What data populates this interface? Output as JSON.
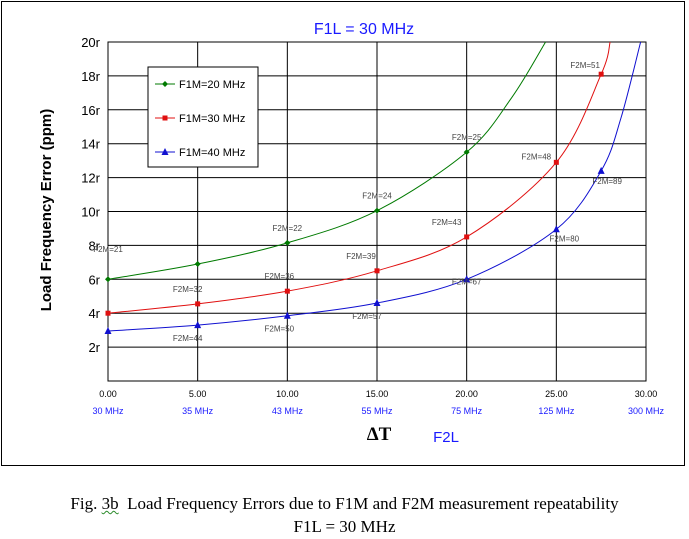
{
  "chart_data": {
    "type": "line",
    "title": "F1L = 30 MHz",
    "xlabel": "ΔT",
    "xlabel2": "F2L",
    "ylabel": "Load Frequency Error (ppm)",
    "xlim": [
      0,
      30
    ],
    "ylim": [
      0,
      20
    ],
    "grid": true,
    "legend_position": "top-left",
    "x_ticks": [
      "0.00",
      "5.00",
      "10.00",
      "15.00",
      "20.00",
      "25.00",
      "30.00"
    ],
    "x_tick_values": [
      0,
      5,
      10,
      15,
      20,
      25,
      30
    ],
    "x_ticks_secondary": [
      "30 MHz",
      "35 MHz",
      "43 MHz",
      "55 MHz",
      "75 MHz",
      "125 MHz",
      "300 MHz"
    ],
    "y_ticks": [
      "2r",
      "4r",
      "6r",
      "8r",
      "10r",
      "12r",
      "14r",
      "16r",
      "18r",
      "20r"
    ],
    "y_tick_values": [
      2,
      4,
      6,
      8,
      10,
      12,
      14,
      16,
      18,
      20
    ],
    "series": [
      {
        "name": "F1M=20 MHz",
        "color": "#007a00",
        "marker": "diamond",
        "x": [
          0,
          5,
          10,
          15,
          20
        ],
        "y": [
          6.0,
          6.9,
          8.15,
          10.05,
          13.5
        ],
        "curve_ext": [
          [
            22.5,
            16.7
          ],
          [
            24.4,
            20.0
          ]
        ],
        "labels": [
          "F2M=21",
          "F2M=22",
          "F2M=24",
          "F2M=25"
        ],
        "label_x": [
          0,
          10,
          15,
          20
        ],
        "label_y": [
          6.9,
          8.15,
          10.05,
          13.5
        ]
      },
      {
        "name": "F1M=30 MHz",
        "color": "#e01010",
        "marker": "square",
        "x": [
          0,
          5,
          10,
          15,
          20,
          25,
          27.5
        ],
        "y": [
          4.0,
          4.55,
          5.3,
          6.5,
          8.5,
          12.9,
          18.1
        ],
        "curve_ext": [
          [
            28.0,
            20.0
          ]
        ],
        "labels": [
          "F2M=32",
          "F2M=36",
          "F2M=39",
          "F2M=43",
          "F2M=48",
          "F2M=51"
        ],
        "label_x": [
          5,
          10,
          15,
          20,
          25,
          27.5
        ],
        "label_y": [
          4.55,
          5.3,
          6.5,
          8.5,
          12.9,
          18.1
        ]
      },
      {
        "name": "F1M=40 MHz",
        "color": "#1010d0",
        "marker": "triangle",
        "x": [
          0,
          5,
          10,
          15,
          20,
          25,
          27.5
        ],
        "y": [
          2.95,
          3.3,
          3.85,
          4.6,
          6.0,
          8.95,
          12.4
        ],
        "curve_ext": [
          [
            28.6,
            15.5
          ],
          [
            29.7,
            20.0
          ]
        ],
        "labels": [
          "F2M=44",
          "F2M=50",
          "F2M=57",
          "F2M=67",
          "F2M=80",
          "F2M=89"
        ],
        "label_x": [
          5,
          10,
          15,
          20,
          25,
          27.5
        ],
        "label_y": [
          3.3,
          3.85,
          4.6,
          6.0,
          8.95,
          12.4
        ]
      }
    ]
  },
  "caption": {
    "line1_prefix": "Fig. ",
    "line1_fig": "3b",
    "line1_rest": "  Load Frequency Errors due to F1M and F2M measurement repeatability",
    "line2": "F1L = 30 MHz"
  }
}
